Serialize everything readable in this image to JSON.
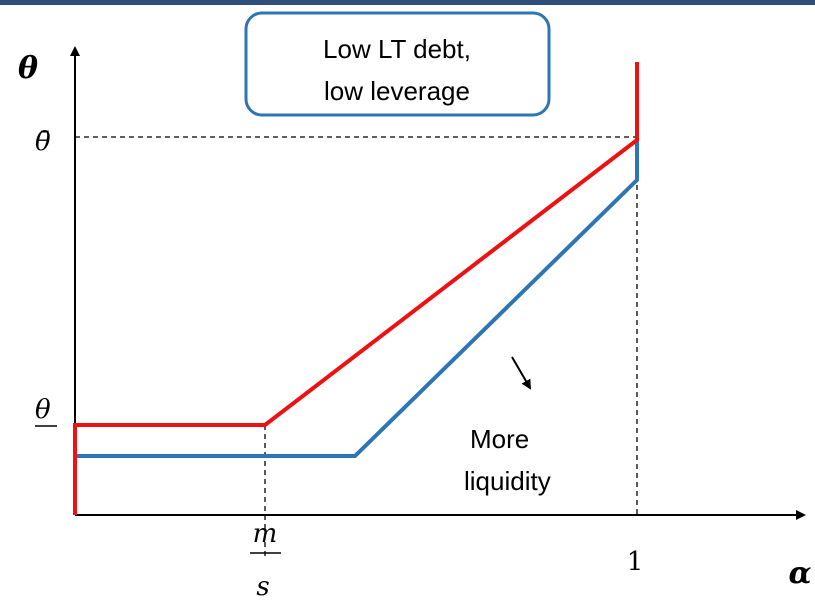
{
  "box_text": [
    "Low LT debt,",
    "low leverage"
  ],
  "y_axis_label": "θ",
  "y_labels": {
    "upper": "θ̄",
    "lower": "θ"
  },
  "x_labels": {
    "fraction_top": "m",
    "fraction_bottom": "s",
    "one": "1"
  },
  "x_axis_label": "α",
  "annotation": [
    "More",
    "liquidity"
  ]
}
